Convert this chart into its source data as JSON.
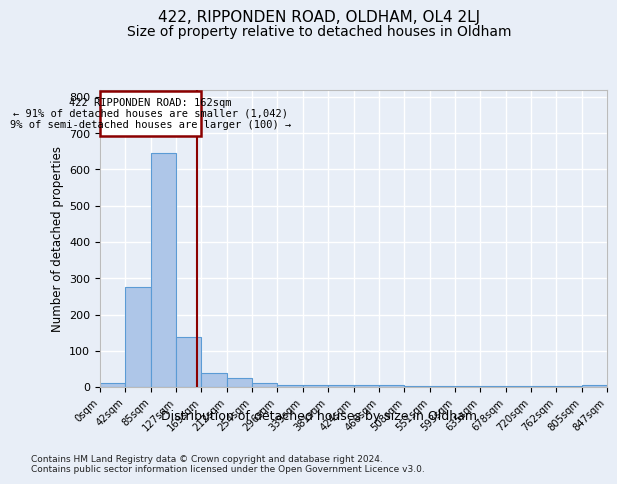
{
  "title": "422, RIPPONDEN ROAD, OLDHAM, OL4 2LJ",
  "subtitle": "Size of property relative to detached houses in Oldham",
  "xlabel": "Distribution of detached houses by size in Oldham",
  "ylabel": "Number of detached properties",
  "bin_edges": [
    0,
    42,
    85,
    127,
    169,
    212,
    254,
    296,
    339,
    381,
    424,
    466,
    508,
    551,
    593,
    635,
    678,
    720,
    762,
    805,
    847
  ],
  "bar_heights": [
    10,
    275,
    645,
    138,
    40,
    25,
    10,
    5,
    5,
    5,
    5,
    5,
    3,
    3,
    3,
    3,
    3,
    3,
    3,
    5
  ],
  "bar_color": "#aec6e8",
  "bar_edge_color": "#5b9bd5",
  "property_size": 162,
  "vline_color": "#8b0000",
  "annotation_line1": "422 RIPPONDEN ROAD: 162sqm",
  "annotation_line2": "← 91% of detached houses are smaller (1,042)",
  "annotation_line3": "9% of semi-detached houses are larger (100) →",
  "annotation_box_color": "#8b0000",
  "annotation_fill": "#ffffff",
  "ylim": [
    0,
    820
  ],
  "yticks": [
    0,
    100,
    200,
    300,
    400,
    500,
    600,
    700,
    800
  ],
  "background_color": "#e8eef7",
  "footer_text": "Contains HM Land Registry data © Crown copyright and database right 2024.\nContains public sector information licensed under the Open Government Licence v3.0.",
  "grid_color": "#ffffff",
  "title_fontsize": 11,
  "subtitle_fontsize": 10
}
